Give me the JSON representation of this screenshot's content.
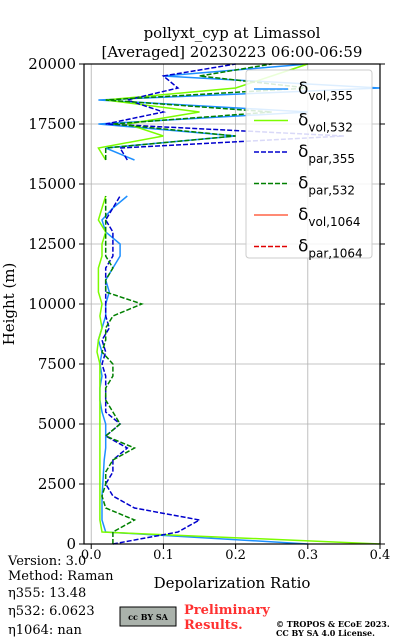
{
  "chart_data": {
    "type": "line",
    "title": "pollyxt_cyp at Limassol",
    "subtitle": "[Averaged] 20230223 06:00-06:59",
    "xlabel": "Depolarization Ratio",
    "ylabel": "Height (m)",
    "xlim": [
      -0.01,
      0.4
    ],
    "ylim": [
      0,
      20000
    ],
    "xticks": [
      {
        "value": 0,
        "label": "0.0"
      },
      0.1,
      0.2,
      0.3,
      0.4
    ],
    "yticks": [
      0,
      2500,
      5000,
      7500,
      10000,
      12500,
      15000,
      17500,
      20000
    ],
    "grid": true,
    "legend": "upper right",
    "heights": [
      0,
      500,
      1000,
      1500,
      2000,
      2500,
      3000,
      3500,
      4000,
      4500,
      5000,
      5500,
      6000,
      6500,
      7000,
      7500,
      8000,
      8500,
      9000,
      9500,
      10000,
      10500,
      11000,
      11500,
      12000,
      12500,
      13000,
      13500,
      14000,
      14500,
      15000,
      15500,
      16000,
      16500,
      17000,
      17500,
      18000,
      18500,
      19000,
      19500,
      20000
    ],
    "series": [
      {
        "name": "δvol,355",
        "color": "#1e90ff",
        "dash": false,
        "values": [
          0.3,
          0.02,
          0.015,
          0.015,
          0.015,
          0.016,
          0.017,
          0.018,
          0.02,
          0.02,
          0.02,
          0.015,
          0.012,
          0.012,
          0.015,
          0.012,
          0.015,
          0.01,
          0.015,
          0.02,
          0.02,
          0.025,
          0.02,
          0.03,
          0.04,
          0.04,
          0.02,
          0.015,
          0.03,
          0.05,
          null,
          null,
          0.06,
          0.02,
          0.2,
          0.01,
          0.3,
          0.01,
          0.4,
          0.1,
          0.3
        ]
      },
      {
        "name": "δvol,532",
        "color": "#7cfc00",
        "dash": false,
        "values": [
          0.4,
          0.015,
          0.012,
          0.012,
          0.012,
          0.012,
          0.012,
          0.012,
          0.012,
          0.012,
          0.012,
          0.012,
          0.012,
          0.012,
          0.012,
          0.012,
          0.008,
          0.01,
          0.015,
          0.012,
          0.015,
          0.01,
          0.01,
          0.01,
          0.015,
          0.015,
          0.02,
          0.01,
          0.015,
          0.02,
          null,
          null,
          0.02,
          0.01,
          0.1,
          0.05,
          0.15,
          0.02,
          0.2,
          0.25,
          0.3
        ]
      },
      {
        "name": "δpar,355",
        "color": "#0000cd",
        "dash": true,
        "values": [
          0.03,
          0.12,
          0.15,
          0.06,
          0.03,
          0.02,
          0.03,
          0.03,
          0.05,
          0.02,
          0.04,
          0.02,
          0.02,
          0.02,
          0.02,
          0.015,
          0.02,
          0.015,
          0.025,
          0.02,
          0.02,
          0.02,
          0.02,
          0.02,
          0.03,
          0.03,
          0.03,
          0.02,
          0.03,
          0.04,
          null,
          null,
          0.05,
          0.04,
          0.35,
          0.02,
          0.1,
          0.05,
          0.12,
          0.1,
          0.2
        ]
      },
      {
        "name": "δpar,532",
        "color": "#008000",
        "dash": true,
        "values": [
          0.03,
          0.03,
          0.06,
          0.02,
          0.015,
          0.02,
          0.02,
          0.03,
          0.06,
          0.02,
          0.04,
          0.03,
          0.02,
          0.02,
          0.03,
          0.03,
          0.015,
          0.02,
          0.02,
          0.03,
          0.07,
          0.02,
          0.02,
          0.03,
          0.02,
          0.02,
          0.02,
          0.02,
          0.02,
          0.02,
          null,
          null,
          0.02,
          0.02,
          0.2,
          0.03,
          0.25,
          0.02,
          0.3,
          0.15,
          0.25
        ]
      },
      {
        "name": "δvol,1064",
        "color": "#ff6347",
        "dash": false,
        "values": [
          null,
          null,
          null,
          null,
          null,
          null,
          null,
          null,
          null,
          null,
          null,
          null,
          null,
          null,
          null,
          null,
          null,
          null,
          null,
          null,
          null,
          null,
          null,
          null,
          null,
          null,
          null,
          null,
          null,
          null,
          null,
          null,
          null,
          null,
          null,
          null,
          null,
          null,
          null,
          null,
          null
        ]
      },
      {
        "name": "δpar,1064",
        "color": "#e00000",
        "dash": true,
        "values": [
          null,
          null,
          null,
          null,
          null,
          null,
          null,
          null,
          null,
          null,
          null,
          null,
          null,
          null,
          null,
          null,
          null,
          null,
          null,
          null,
          null,
          null,
          null,
          null,
          null,
          null,
          null,
          null,
          null,
          null,
          null,
          null,
          null,
          null,
          null,
          null,
          null,
          null,
          null,
          null,
          null
        ]
      }
    ]
  },
  "footer": {
    "info": [
      "Version: 3.0",
      "Method: Raman",
      "η355:  13.48",
      "η532: 6.0623",
      "η1064:    nan"
    ],
    "license_icon": "cc BY SA",
    "preliminary": [
      "Preliminary",
      "Results."
    ],
    "copyright": [
      "© TROPOS & ECoE 2023.",
      "CC BY SA 4.0 License."
    ]
  }
}
